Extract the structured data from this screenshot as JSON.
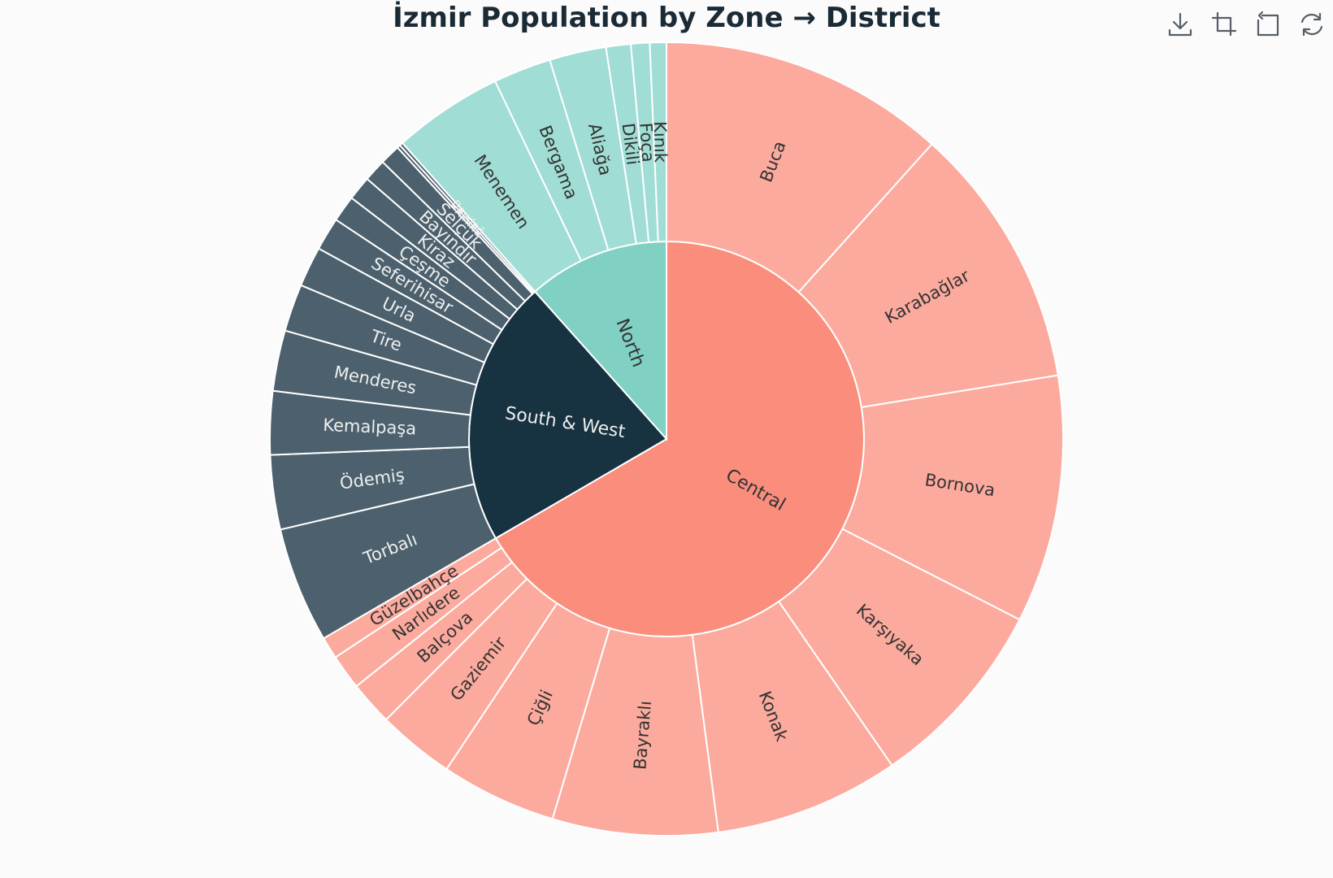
{
  "title": "İzmir Population by Zone → District",
  "toolbox": [
    {
      "name": "save-image-icon",
      "icon": "download"
    },
    {
      "name": "data-zoom-icon",
      "icon": "crop"
    },
    {
      "name": "zoom-reset-icon",
      "icon": "undo"
    },
    {
      "name": "restore-icon",
      "icon": "refresh"
    }
  ],
  "colors": {
    "Central": "#fa8d7b",
    "Central_leaf": "#fcaa9d",
    "South & West": "#173240",
    "South & West_leaf": "#4c616d",
    "North": "#80d0c3",
    "North_leaf": "#a0ddd4",
    "label_dark": "#333333",
    "label_light": "#eeeeee"
  },
  "chart_data": {
    "type": "sunburst",
    "title": "İzmir Population by Zone → District",
    "children": [
      {
        "name": "Central",
        "children": [
          {
            "name": "Buca",
            "value": 520000
          },
          {
            "name": "Karabağlar",
            "value": 480000
          },
          {
            "name": "Bornova",
            "value": 450000
          },
          {
            "name": "Karşıyaka",
            "value": 350000
          },
          {
            "name": "Konak",
            "value": 336000
          },
          {
            "name": "Bayraklı",
            "value": 300000
          },
          {
            "name": "Çiğli",
            "value": 210000
          },
          {
            "name": "Gaziemir",
            "value": 140000
          },
          {
            "name": "Balçova",
            "value": 80000
          },
          {
            "name": "Narlıdere",
            "value": 64000
          },
          {
            "name": "Güzelbahçe",
            "value": 40000
          }
        ]
      },
      {
        "name": "South & West",
        "children": [
          {
            "name": "Torbalı",
            "value": 210000
          },
          {
            "name": "Ödemiş",
            "value": 135000
          },
          {
            "name": "Kemalpaşa",
            "value": 115000
          },
          {
            "name": "Menderes",
            "value": 110000
          },
          {
            "name": "Tire",
            "value": 86000
          },
          {
            "name": "Urla",
            "value": 73000
          },
          {
            "name": "Seferihisar",
            "value": 60000
          },
          {
            "name": "Çeşme",
            "value": 48000
          },
          {
            "name": "Kiraz",
            "value": 44000
          },
          {
            "name": "Bayındır",
            "value": 41000
          },
          {
            "name": "Selçuk",
            "value": 37000
          },
          {
            "name": "Kınık",
            "value": 6000
          },
          {
            "name": "Beydağ",
            "value": 6000
          }
        ]
      },
      {
        "name": "North",
        "children": [
          {
            "name": "Menemen",
            "value": 200000
          },
          {
            "name": "Bergama",
            "value": 105000
          },
          {
            "name": "Aliağa",
            "value": 103000
          },
          {
            "name": "Dikili",
            "value": 45000
          },
          {
            "name": "Foça",
            "value": 34000
          },
          {
            "name": "Kınık",
            "value": 30000
          }
        ]
      }
    ]
  }
}
